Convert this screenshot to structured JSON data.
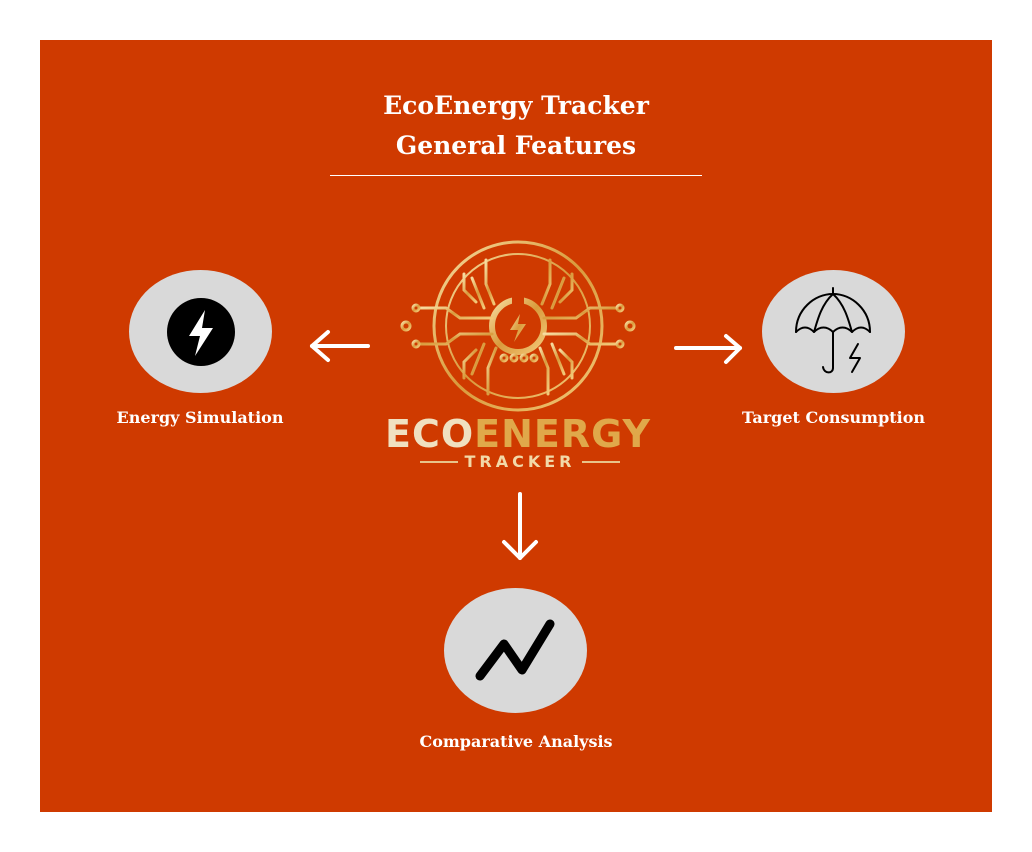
{
  "header": {
    "title_line1": "EcoEnergy Tracker",
    "title_line2": "General Features"
  },
  "logo": {
    "word_eco": "ECO",
    "word_energy": "ENERGY",
    "word_sub": "TRACKER",
    "icon": "power-bolt-circuit-icon"
  },
  "features": {
    "left": {
      "label": "Energy Simulation",
      "icon": "lightning-bolt-icon"
    },
    "right": {
      "label": "Target Consumption",
      "icon": "umbrella-bolt-icon"
    },
    "bottom": {
      "label": "Comparative Analysis",
      "icon": "zigzag-trend-icon"
    }
  },
  "colors": {
    "background": "#cf3a00",
    "node_fill": "#d9d9d9",
    "text": "#ffffff",
    "logo_gold": "#e0a84a"
  }
}
